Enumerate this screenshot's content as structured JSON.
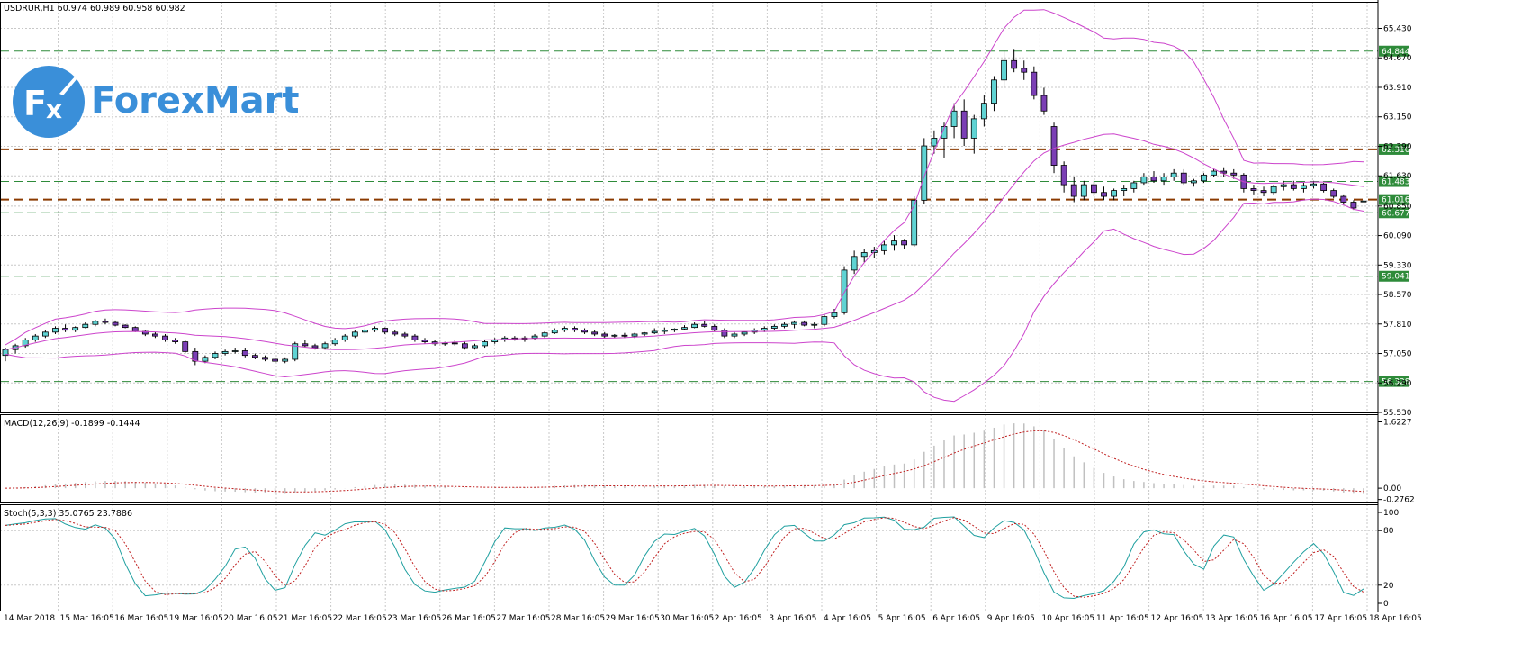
{
  "symbol_header": "USDRUR,H1  60.974 60.989 60.958 60.982",
  "logo": {
    "text": "ForexMart",
    "icon": "fx-logo-icon"
  },
  "chart_data": [
    {
      "panel": "price",
      "type": "candlestick",
      "symbol": "USDRUR",
      "timeframe": "H1",
      "ohlc_last": [
        60.974,
        60.989,
        60.958,
        60.982
      ],
      "ylim": [
        55.53,
        65.79
      ],
      "yticks": [
        "65.430",
        "64.670",
        "63.910",
        "63.150",
        "62.390",
        "61.630",
        "60.850",
        "60.090",
        "59.330",
        "58.570",
        "57.810",
        "57.050",
        "56.290",
        "55.530"
      ],
      "levels": [
        {
          "value": 64.844,
          "label": "64.844",
          "style": "dashed",
          "color": "#2e8b3a"
        },
        {
          "value": 62.31,
          "label": "62.310",
          "style": "dashed",
          "color": "#8b3a00"
        },
        {
          "value": 61.483,
          "label": "61.483",
          "style": "dashed",
          "color": "#2e8b3a"
        },
        {
          "value": 61.016,
          "label": "61.016",
          "style": "dashed",
          "color": "#8b3a00"
        },
        {
          "value": 60.677,
          "label": "60.677",
          "style": "dashed",
          "color": "#2e8b3a"
        },
        {
          "value": 59.041,
          "label": "59.041",
          "style": "dashed",
          "color": "#2e8b3a"
        },
        {
          "value": 56.328,
          "label": "56.328",
          "style": "dashed",
          "color": "#2e8b3a"
        }
      ],
      "candles": [
        [
          57.0,
          57.2,
          56.85,
          57.15
        ],
        [
          57.15,
          57.3,
          57.05,
          57.25
        ],
        [
          57.25,
          57.45,
          57.2,
          57.4
        ],
        [
          57.4,
          57.55,
          57.35,
          57.5
        ],
        [
          57.5,
          57.65,
          57.45,
          57.6
        ],
        [
          57.6,
          57.75,
          57.55,
          57.7
        ],
        [
          57.7,
          57.8,
          57.6,
          57.65
        ],
        [
          57.65,
          57.75,
          57.6,
          57.72
        ],
        [
          57.72,
          57.85,
          57.7,
          57.8
        ],
        [
          57.8,
          57.92,
          57.75,
          57.88
        ],
        [
          57.88,
          57.95,
          57.8,
          57.85
        ],
        [
          57.85,
          57.9,
          57.75,
          57.78
        ],
        [
          57.78,
          57.8,
          57.7,
          57.72
        ],
        [
          57.72,
          57.75,
          57.6,
          57.62
        ],
        [
          57.62,
          57.65,
          57.5,
          57.55
        ],
        [
          57.55,
          57.6,
          57.45,
          57.5
        ],
        [
          57.5,
          57.55,
          57.35,
          57.4
        ],
        [
          57.4,
          57.45,
          57.3,
          57.35
        ],
        [
          57.35,
          57.4,
          57.05,
          57.1
        ],
        [
          57.1,
          57.2,
          56.75,
          56.85
        ],
        [
          56.85,
          57.0,
          56.8,
          56.95
        ],
        [
          56.95,
          57.1,
          56.9,
          57.05
        ],
        [
          57.05,
          57.15,
          57.0,
          57.1
        ],
        [
          57.1,
          57.2,
          57.05,
          57.12
        ],
        [
          57.12,
          57.2,
          56.95,
          57.0
        ],
        [
          57.0,
          57.05,
          56.9,
          56.95
        ],
        [
          56.95,
          57.0,
          56.85,
          56.9
        ],
        [
          56.9,
          56.95,
          56.8,
          56.85
        ],
        [
          56.85,
          56.95,
          56.8,
          56.9
        ],
        [
          56.9,
          57.35,
          56.85,
          57.3
        ],
        [
          57.3,
          57.4,
          57.2,
          57.25
        ],
        [
          57.25,
          57.3,
          57.15,
          57.2
        ],
        [
          57.2,
          57.35,
          57.15,
          57.3
        ],
        [
          57.3,
          57.45,
          57.25,
          57.4
        ],
        [
          57.4,
          57.55,
          57.35,
          57.5
        ],
        [
          57.5,
          57.65,
          57.45,
          57.6
        ],
        [
          57.6,
          57.7,
          57.55,
          57.65
        ],
        [
          57.65,
          57.75,
          57.6,
          57.7
        ],
        [
          57.7,
          57.72,
          57.55,
          57.6
        ],
        [
          57.6,
          57.65,
          57.5,
          57.55
        ],
        [
          57.55,
          57.6,
          57.45,
          57.5
        ],
        [
          57.5,
          57.55,
          57.35,
          57.4
        ],
        [
          57.4,
          57.45,
          57.3,
          57.35
        ],
        [
          57.35,
          57.4,
          57.25,
          57.3
        ],
        [
          57.3,
          57.35,
          57.25,
          57.32
        ],
        [
          57.32,
          57.4,
          57.25,
          57.3
        ],
        [
          57.3,
          57.35,
          57.15,
          57.2
        ],
        [
          57.2,
          57.3,
          57.15,
          57.25
        ],
        [
          57.25,
          57.4,
          57.2,
          57.35
        ],
        [
          57.35,
          57.45,
          57.3,
          57.4
        ],
        [
          57.4,
          57.5,
          57.35,
          57.45
        ],
        [
          57.45,
          57.5,
          57.38,
          57.42
        ],
        [
          57.42,
          57.5,
          57.35,
          57.45
        ],
        [
          57.45,
          57.55,
          57.4,
          57.5
        ],
        [
          57.5,
          57.62,
          57.45,
          57.58
        ],
        [
          57.58,
          57.7,
          57.55,
          57.65
        ],
        [
          57.65,
          57.75,
          57.6,
          57.7
        ],
        [
          57.7,
          57.75,
          57.6,
          57.65
        ],
        [
          57.65,
          57.7,
          57.55,
          57.6
        ],
        [
          57.6,
          57.65,
          57.5,
          57.55
        ],
        [
          57.55,
          57.6,
          57.45,
          57.5
        ],
        [
          57.5,
          57.55,
          57.45,
          57.52
        ],
        [
          57.52,
          57.58,
          57.45,
          57.5
        ],
        [
          57.5,
          57.58,
          57.45,
          57.55
        ],
        [
          57.55,
          57.6,
          57.5,
          57.58
        ],
        [
          57.58,
          57.7,
          57.55,
          57.62
        ],
        [
          57.62,
          57.72,
          57.55,
          57.65
        ],
        [
          57.65,
          57.7,
          57.6,
          57.68
        ],
        [
          57.68,
          57.78,
          57.65,
          57.72
        ],
        [
          57.72,
          57.85,
          57.7,
          57.8
        ],
        [
          57.8,
          57.88,
          57.72,
          57.75
        ],
        [
          57.75,
          57.8,
          57.62,
          57.65
        ],
        [
          57.65,
          57.7,
          57.45,
          57.5
        ],
        [
          57.5,
          57.6,
          57.45,
          57.55
        ],
        [
          57.55,
          57.62,
          57.5,
          57.6
        ],
        [
          57.6,
          57.7,
          57.55,
          57.65
        ],
        [
          57.65,
          57.75,
          57.6,
          57.7
        ],
        [
          57.7,
          57.8,
          57.65,
          57.75
        ],
        [
          57.75,
          57.85,
          57.7,
          57.8
        ],
        [
          57.8,
          57.9,
          57.7,
          57.85
        ],
        [
          57.85,
          57.9,
          57.75,
          57.78
        ],
        [
          57.78,
          57.85,
          57.7,
          57.8
        ],
        [
          57.8,
          58.05,
          57.75,
          58.0
        ],
        [
          58.0,
          58.2,
          57.95,
          58.1
        ],
        [
          58.1,
          59.3,
          58.05,
          59.2
        ],
        [
          59.2,
          59.7,
          59.1,
          59.55
        ],
        [
          59.55,
          59.75,
          59.4,
          59.65
        ],
        [
          59.65,
          59.8,
          59.5,
          59.7
        ],
        [
          59.7,
          59.95,
          59.6,
          59.85
        ],
        [
          59.85,
          60.1,
          59.7,
          59.95
        ],
        [
          59.95,
          60.0,
          59.75,
          59.85
        ],
        [
          59.85,
          61.1,
          59.8,
          61.0
        ],
        [
          61.0,
          62.6,
          60.9,
          62.4
        ],
        [
          62.4,
          62.8,
          62.2,
          62.6
        ],
        [
          62.6,
          63.0,
          62.1,
          62.9
        ],
        [
          62.9,
          63.5,
          62.6,
          63.3
        ],
        [
          63.3,
          63.6,
          62.4,
          62.6
        ],
        [
          62.6,
          63.2,
          62.2,
          63.1
        ],
        [
          63.1,
          63.7,
          62.9,
          63.5
        ],
        [
          63.5,
          64.2,
          63.3,
          64.1
        ],
        [
          64.1,
          64.85,
          63.9,
          64.6
        ],
        [
          64.6,
          64.9,
          64.3,
          64.4
        ],
        [
          64.4,
          64.6,
          64.1,
          64.3
        ],
        [
          64.3,
          64.45,
          63.6,
          63.7
        ],
        [
          63.7,
          63.9,
          63.2,
          63.3
        ],
        [
          62.9,
          63.0,
          61.7,
          61.9
        ],
        [
          61.9,
          62.0,
          61.2,
          61.4
        ],
        [
          61.4,
          61.6,
          60.95,
          61.1
        ],
        [
          61.1,
          61.5,
          61.0,
          61.4
        ],
        [
          61.4,
          61.5,
          61.1,
          61.2
        ],
        [
          61.2,
          61.35,
          61.0,
          61.1
        ],
        [
          61.1,
          61.3,
          61.0,
          61.25
        ],
        [
          61.25,
          61.4,
          61.1,
          61.3
        ],
        [
          61.3,
          61.5,
          61.2,
          61.45
        ],
        [
          61.45,
          61.7,
          61.4,
          61.6
        ],
        [
          61.6,
          61.75,
          61.45,
          61.5
        ],
        [
          61.5,
          61.7,
          61.4,
          61.6
        ],
        [
          61.6,
          61.8,
          61.5,
          61.7
        ],
        [
          61.7,
          61.8,
          61.4,
          61.45
        ],
        [
          61.45,
          61.55,
          61.35,
          61.5
        ],
        [
          61.5,
          61.7,
          61.45,
          61.65
        ],
        [
          61.65,
          61.8,
          61.6,
          61.75
        ],
        [
          61.75,
          61.85,
          61.6,
          61.7
        ],
        [
          61.7,
          61.8,
          61.55,
          61.65
        ],
        [
          61.65,
          61.7,
          61.2,
          61.3
        ],
        [
          61.3,
          61.4,
          61.15,
          61.25
        ],
        [
          61.25,
          61.35,
          61.1,
          61.2
        ],
        [
          61.2,
          61.4,
          61.15,
          61.35
        ],
        [
          61.35,
          61.5,
          61.25,
          61.4
        ],
        [
          61.4,
          61.5,
          61.25,
          61.3
        ],
        [
          61.3,
          61.45,
          61.2,
          61.38
        ],
        [
          61.38,
          61.5,
          61.3,
          61.42
        ],
        [
          61.42,
          61.45,
          61.2,
          61.25
        ],
        [
          61.25,
          61.3,
          61.05,
          61.1
        ],
        [
          61.1,
          61.15,
          60.9,
          60.95
        ],
        [
          60.95,
          61.0,
          60.75,
          60.8
        ],
        [
          60.97,
          60.99,
          60.96,
          60.98
        ]
      ],
      "bollinger": {
        "name": "Bollinger Bands",
        "color": "#cc44cc"
      }
    },
    {
      "panel": "macd",
      "type": "histogram+line",
      "header": "MACD(12,26,9) -0.1899 -0.1444",
      "yticks": [
        "1.6227",
        "0.00",
        "-0.2762"
      ],
      "ylim": [
        -0.35,
        1.7
      ],
      "histogram_color": "#c0c0c0",
      "signal_color": "#c02020"
    },
    {
      "panel": "stochastic",
      "type": "line",
      "header": "Stoch(5,3,3) 35.0765 23.7886",
      "yticks": [
        "100",
        "80",
        "20",
        "0"
      ],
      "ylim": [
        0,
        100
      ],
      "main_color": "#20a0a0",
      "signal_color": "#c02020"
    }
  ],
  "x_axis": {
    "ticks": [
      "14 Mar 2018",
      "15 Mar 16:05",
      "16 Mar 16:05",
      "19 Mar 16:05",
      "20 Mar 16:05",
      "21 Mar 16:05",
      "22 Mar 16:05",
      "23 Mar 16:05",
      "26 Mar 16:05",
      "27 Mar 16:05",
      "28 Mar 16:05",
      "29 Mar 16:05",
      "30 Mar 16:05",
      "2 Apr 16:05",
      "3 Apr 16:05",
      "4 Apr 16:05",
      "5 Apr 16:05",
      "6 Apr 16:05",
      "9 Apr 16:05",
      "10 Apr 16:05",
      "11 Apr 16:05",
      "12 Apr 16:05",
      "13 Apr 16:05",
      "16 Apr 16:05",
      "17 Apr 16:05",
      "18 Apr 16:05"
    ]
  },
  "colors": {
    "bull": "#5fd3d3",
    "bear": "#7b3fb5",
    "grid": "#c8c8c8",
    "axis": "#000000",
    "bg": "#ffffff",
    "level_green_bg": "#2e8b3a",
    "level_brown_bg": "#2e8b3a"
  }
}
